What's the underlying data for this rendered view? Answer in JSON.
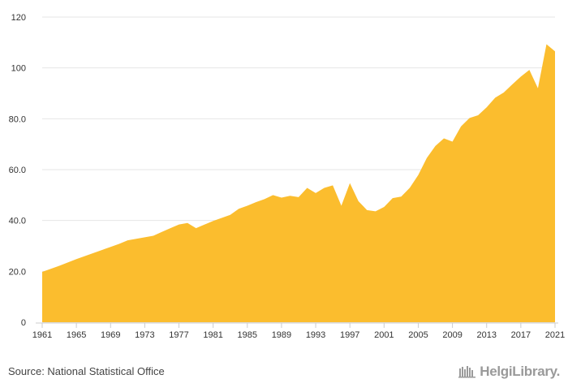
{
  "chart_data": {
    "type": "area",
    "title": "",
    "xlabel": "",
    "ylabel": "",
    "color": "#FBBD2E",
    "ylim": [
      0,
      120
    ],
    "y_ticks": [
      0,
      20,
      40,
      60,
      80,
      100,
      120
    ],
    "y_tick_labels": [
      "0",
      "20.0",
      "40.0",
      "60.0",
      "80.0",
      "100",
      "120"
    ],
    "x_ticks": [
      1961,
      1965,
      1969,
      1973,
      1977,
      1981,
      1985,
      1989,
      1993,
      1997,
      2001,
      2005,
      2009,
      2013,
      2017,
      2021
    ],
    "x": [
      1961,
      1962,
      1963,
      1964,
      1965,
      1966,
      1967,
      1968,
      1969,
      1970,
      1971,
      1972,
      1973,
      1974,
      1975,
      1976,
      1977,
      1978,
      1979,
      1980,
      1981,
      1982,
      1983,
      1984,
      1985,
      1986,
      1987,
      1988,
      1989,
      1990,
      1991,
      1992,
      1993,
      1994,
      1995,
      1996,
      1997,
      1998,
      1999,
      2000,
      2001,
      2002,
      2003,
      2004,
      2005,
      2006,
      2007,
      2008,
      2009,
      2010,
      2011,
      2012,
      2013,
      2014,
      2015,
      2016,
      2017,
      2018,
      2019,
      2020,
      2021
    ],
    "values": [
      19.8,
      21,
      22.2,
      23.5,
      24.8,
      26,
      27.2,
      28.4,
      29.6,
      30.8,
      32.2,
      32.8,
      33.4,
      34,
      35.5,
      37,
      38.4,
      39,
      37,
      38.4,
      39.8,
      41,
      42.2,
      44.6,
      45.8,
      47.2,
      48.4,
      50,
      49,
      49.7,
      49.2,
      52.8,
      50.8,
      52.8,
      53.8,
      45.8,
      54.7,
      47.6,
      44.1,
      43.6,
      45.3,
      48.8,
      49.4,
      52.8,
      57.9,
      64.6,
      69.3,
      72.3,
      71,
      77,
      80.3,
      81.4,
      84.5,
      88.3,
      90.3,
      93.5,
      96.6,
      99.2,
      92,
      109.3,
      106.5
    ]
  },
  "footer": {
    "source": "Source: National Statistical Office",
    "logo_text": "HelgiLibrary."
  }
}
